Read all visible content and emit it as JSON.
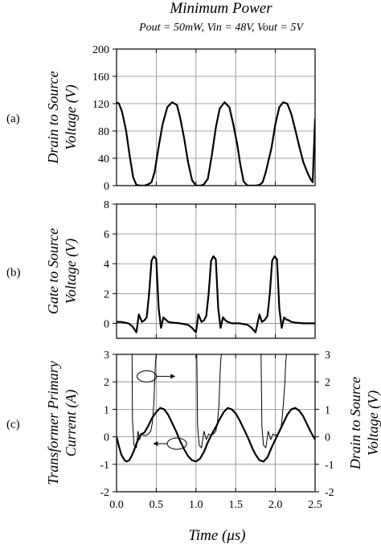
{
  "header": {
    "title": "Minimum Power",
    "subtitle": "Pout = 50mW, Vin = 48V, Vout = 5V"
  },
  "xaxis": {
    "label": "Time (μs)",
    "range": [
      0,
      2.5
    ],
    "tick_labels": [
      "0.0",
      "0.5",
      "1.0",
      "1.5",
      "2.0",
      "2.5"
    ]
  },
  "chart_data": [
    {
      "type": "line",
      "panel": "(a)",
      "ylabel_line1": "Drain to Source",
      "ylabel_line2": "Voltage (V)",
      "ylim": [
        0,
        200
      ],
      "yticks": [
        0,
        40,
        80,
        120,
        160,
        200
      ],
      "grid": true,
      "series": [
        {
          "x": [
            0,
            0.03,
            0.07,
            0.12,
            0.17,
            0.21,
            0.25,
            0.3,
            0.35,
            0.4,
            0.44,
            0.48,
            0.52,
            0.58,
            0.64,
            0.7,
            0.76,
            0.8,
            0.85,
            0.9,
            0.95,
            1.0,
            1.06,
            1.1,
            1.15,
            1.2,
            1.25,
            1.3,
            1.36,
            1.42,
            1.47,
            1.52,
            1.56,
            1.6,
            1.65,
            1.7,
            1.75,
            1.8,
            1.84,
            1.88,
            1.95,
            2.0,
            2.05,
            2.1,
            2.15,
            2.2,
            2.25,
            2.3,
            2.35,
            2.4,
            2.44,
            2.47,
            2.5
          ],
          "y": [
            122,
            120,
            108,
            80,
            40,
            12,
            1,
            0,
            0,
            2,
            5,
            20,
            50,
            90,
            115,
            122,
            118,
            100,
            70,
            35,
            8,
            0,
            0,
            2,
            10,
            45,
            85,
            113,
            122,
            115,
            90,
            60,
            30,
            6,
            0,
            0,
            0,
            1,
            5,
            20,
            55,
            90,
            115,
            122,
            120,
            105,
            82,
            58,
            35,
            20,
            10,
            5,
            98
          ]
        }
      ]
    },
    {
      "type": "line",
      "panel": "(b)",
      "ylabel_line1": "Gate to Source",
      "ylabel_line2": "Voltage (V)",
      "ylim": [
        -1,
        8
      ],
      "yticks": [
        0,
        2,
        4,
        6,
        8
      ],
      "grid": true,
      "series": [
        {
          "x": [
            0,
            0.05,
            0.1,
            0.15,
            0.2,
            0.25,
            0.28,
            0.32,
            0.35,
            0.38,
            0.41,
            0.44,
            0.47,
            0.5,
            0.53,
            0.56,
            0.59,
            0.62,
            0.65,
            0.7,
            0.8,
            0.9,
            0.95,
            1.0,
            1.03,
            1.07,
            1.1,
            1.13,
            1.16,
            1.19,
            1.22,
            1.25,
            1.28,
            1.31,
            1.34,
            1.37,
            1.4,
            1.45,
            1.55,
            1.65,
            1.7,
            1.75,
            1.8,
            1.83,
            1.86,
            1.9,
            1.93,
            1.96,
            1.99,
            2.02,
            2.05,
            2.08,
            2.11,
            2.14,
            2.17,
            2.2,
            2.25,
            2.35,
            2.45,
            2.5
          ],
          "y": [
            0.1,
            0.1,
            0.05,
            0,
            -0.2,
            -0.6,
            0.6,
            0.1,
            0.2,
            0.4,
            2.0,
            4.2,
            4.5,
            4.3,
            1.0,
            -0.3,
            0.4,
            0.25,
            0.1,
            0.05,
            0,
            -0.1,
            -0.3,
            -0.6,
            0.6,
            0.1,
            0.2,
            0.5,
            2.0,
            4.2,
            4.5,
            4.3,
            1.0,
            -0.3,
            0.4,
            0.2,
            0.1,
            0,
            0,
            -0.1,
            -0.3,
            -0.6,
            0.6,
            0.1,
            0.2,
            0.5,
            2.0,
            4.2,
            4.5,
            4.3,
            1.0,
            -0.3,
            0.4,
            0.25,
            0.2,
            0.1,
            0.05,
            0,
            0,
            0
          ]
        }
      ]
    },
    {
      "type": "line",
      "panel": "(c)",
      "ylabel_line1": "Transformer Primary",
      "ylabel_line2": "Current (A)",
      "y2label_line1": "Drain to Source",
      "y2label_line2": "Voltage (V)",
      "ylim": [
        -2,
        3
      ],
      "yticks": [
        -2,
        -1,
        0,
        1,
        2,
        3
      ],
      "y2ticks": [
        -2,
        -1,
        0,
        1,
        2,
        3
      ],
      "grid": true,
      "series": [
        {
          "x": [
            0,
            0.03,
            0.06,
            0.1,
            0.13,
            0.16,
            0.19,
            0.22,
            0.25,
            0.28,
            0.31,
            0.35,
            0.4,
            0.45,
            0.5,
            0.55,
            0.6,
            0.65,
            0.7,
            0.75,
            0.8,
            0.85,
            0.9,
            0.95,
            1.0,
            1.05,
            1.1,
            1.15,
            1.2,
            1.25,
            1.3,
            1.35,
            1.4,
            1.45,
            1.5,
            1.55,
            1.6,
            1.65,
            1.7,
            1.75,
            1.8,
            1.85,
            1.9,
            1.95,
            2.0,
            2.05,
            2.1,
            2.15,
            2.2,
            2.25,
            2.3,
            2.35,
            2.4,
            2.45,
            2.5
          ],
          "y": [
            0,
            -0.35,
            -0.65,
            -0.85,
            -0.9,
            -0.85,
            -0.7,
            -0.5,
            -0.25,
            -0.05,
            0.1,
            0.15,
            0.4,
            0.7,
            0.9,
            1.05,
            1.0,
            0.8,
            0.5,
            0.2,
            -0.15,
            -0.45,
            -0.7,
            -0.85,
            -0.9,
            -0.8,
            -0.55,
            -0.2,
            0.1,
            0.35,
            0.65,
            0.9,
            1.05,
            1.0,
            0.85,
            0.6,
            0.3,
            0.0,
            -0.35,
            -0.65,
            -0.85,
            -0.9,
            -0.75,
            -0.4,
            -0.1,
            0.2,
            0.5,
            0.8,
            1.0,
            1.05,
            0.95,
            0.75,
            0.45,
            0.15,
            -0.1
          ]
        },
        {
          "x": [
            0.195,
            0.2,
            0.22,
            0.25,
            0.27,
            0.29,
            0.31,
            0.34,
            0.37,
            0.4,
            0.43,
            0.45,
            0.47,
            0.48,
            0.49,
            0.5,
            1.01,
            1.02,
            1.04,
            1.07,
            1.1,
            1.13,
            1.16,
            1.19,
            1.22,
            1.25,
            1.27,
            1.29,
            1.3,
            1.31,
            1.32,
            1.82,
            1.83,
            1.85,
            1.88,
            1.91,
            1.94,
            1.97,
            2.0,
            2.03,
            2.06,
            2.08,
            2.1,
            2.12,
            2.13,
            2.14
          ],
          "y": [
            3,
            0.6,
            -0.3,
            -0.4,
            0.2,
            -0.1,
            0.1,
            0.05,
            0.05,
            0.1,
            0.2,
            0.5,
            1.2,
            2.0,
            2.7,
            3,
            3,
            0.4,
            -0.3,
            -0.4,
            0.2,
            -0.1,
            0.1,
            0.05,
            0.1,
            0.2,
            0.5,
            1.2,
            2.0,
            2.7,
            3,
            3,
            0.4,
            -0.3,
            -0.4,
            0.2,
            -0.1,
            0.1,
            0.05,
            0.1,
            0.2,
            0.5,
            1.2,
            2.0,
            2.7,
            3
          ]
        }
      ]
    }
  ]
}
